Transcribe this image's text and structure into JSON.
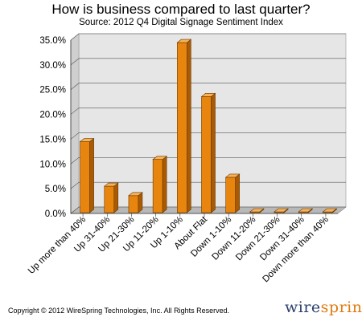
{
  "chart_data": {
    "type": "bar",
    "title": "How is business compared to last quarter?",
    "subtitle": "Source: 2012 Q4 Digital Signage Sentiment Index",
    "categories": [
      "Up more than 40%",
      "Up 31-40%",
      "Up 21-30%",
      "Up 11-20%",
      "Up 1-10%",
      "About Flat",
      "Down 1-10%",
      "Down 11-20%",
      "Down 21-30%",
      "Down 31-40%",
      "Down more than 40%"
    ],
    "values": [
      14.5,
      5.5,
      3.6,
      10.9,
      34.5,
      23.6,
      7.3,
      0,
      0,
      0,
      0
    ],
    "ylim": [
      0,
      35
    ],
    "yticks": [
      "0.0%",
      "5.0%",
      "10.0%",
      "15.0%",
      "20.0%",
      "25.0%",
      "30.0%",
      "35.0%"
    ],
    "grid": true,
    "bar_color": "#e8850f",
    "plot_bg": "#e6e6e6"
  },
  "footer": {
    "copyright": "Copyright © 2012 WireSpring Technologies, Inc. All Rights Reserved.",
    "logo_part1": "wire",
    "logo_part2": "spring"
  }
}
